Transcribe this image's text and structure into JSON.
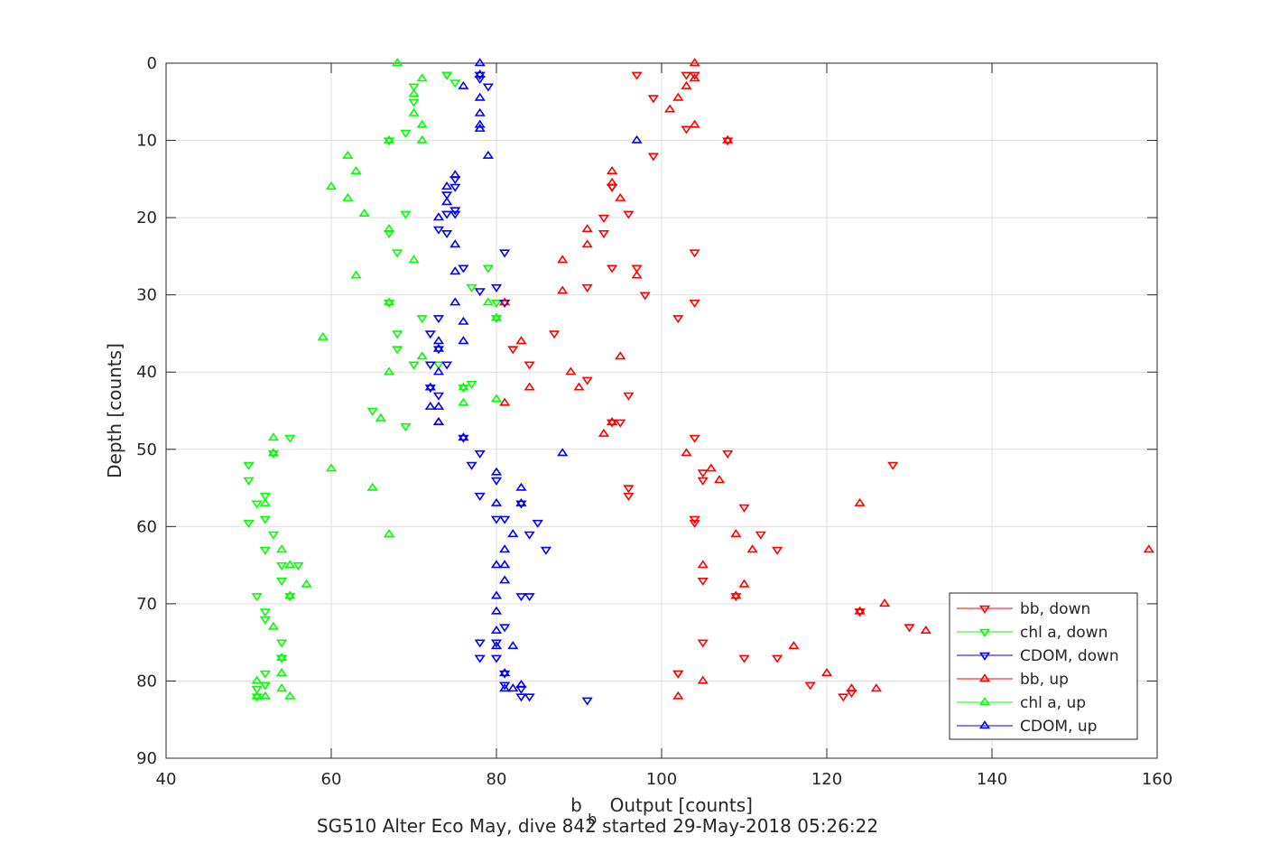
{
  "chart_data": {
    "type": "scatter",
    "title": "",
    "xlabel": "Output [counts]",
    "xlabel_prefix": "b",
    "xlabel_subscript": "b",
    "ylabel": "Depth [counts]",
    "caption": "SG510 Alter Eco May, dive 842 started 29-May-2018 05:26:22",
    "xlim": [
      40,
      160
    ],
    "ylim": [
      0,
      90
    ],
    "y_reversed": true,
    "grid": true,
    "legend_position": "bottom-right",
    "x_ticks": [
      "40",
      "60",
      "80",
      "100",
      "120",
      "140",
      "160"
    ],
    "y_ticks": [
      "0",
      "10",
      "20",
      "30",
      "40",
      "50",
      "60",
      "70",
      "80",
      "90"
    ],
    "series": [
      {
        "name": "bb, down",
        "color": "#ff0000",
        "marker": "triangle-down",
        "x": [
          97,
          103,
          104,
          99,
          103,
          108,
          99,
          94,
          94,
          94,
          96,
          93,
          93,
          104,
          97,
          94,
          91,
          104,
          102,
          87,
          82,
          84,
          91,
          96,
          94,
          95,
          104,
          108,
          128,
          105,
          105,
          96,
          96,
          104,
          110,
          112,
          114,
          109,
          104,
          105,
          124,
          130,
          124,
          105,
          110,
          114,
          102,
          118,
          123,
          122,
          102,
          98
        ],
        "y": [
          1.5,
          1.5,
          1.5,
          4.5,
          8.5,
          10,
          12,
          16,
          16,
          16,
          19.5,
          20,
          22,
          24.5,
          26.5,
          26.5,
          29,
          31,
          33,
          35,
          37,
          39,
          41,
          43,
          46.5,
          46.5,
          48.5,
          50.5,
          52,
          53,
          54,
          55,
          56,
          59,
          57.5,
          61,
          63,
          69,
          59.5,
          67,
          71,
          73,
          71,
          75,
          77,
          77,
          79,
          80.5,
          81.5,
          82,
          79,
          30
        ]
      },
      {
        "name": "chl a, down",
        "color": "#00ff00",
        "marker": "triangle-down",
        "x": [
          74,
          74,
          75,
          70,
          70,
          69,
          67,
          69,
          67,
          68,
          67,
          79,
          77,
          80,
          71,
          68,
          68,
          70,
          73,
          76,
          77,
          65,
          69,
          55,
          53,
          50,
          50,
          51,
          52,
          52,
          50,
          53,
          52,
          54,
          55,
          56,
          54,
          51,
          52,
          52,
          54,
          54,
          54,
          52,
          52,
          51,
          51,
          80
        ],
        "y": [
          1.5,
          1.5,
          2.5,
          3,
          5,
          9,
          10,
          19.5,
          22,
          24.5,
          31,
          26.5,
          29,
          33,
          33,
          35,
          37,
          39,
          39,
          42,
          41.5,
          45,
          47,
          48.5,
          50.5,
          52,
          54,
          57,
          56,
          59,
          59.5,
          61,
          63,
          65,
          69,
          65,
          67,
          69,
          71,
          72,
          75,
          77,
          77,
          79,
          80.5,
          81,
          82,
          31
        ]
      },
      {
        "name": "CDOM, down",
        "color": "#0000ff",
        "marker": "triangle-down",
        "x": [
          78,
          78,
          79,
          75,
          74,
          75,
          74,
          73,
          75,
          74,
          81,
          80,
          78,
          76,
          73,
          72,
          72,
          74,
          73,
          72,
          73,
          76,
          78,
          77,
          80,
          78,
          80,
          81,
          83,
          84,
          85,
          86,
          83,
          84,
          81,
          80,
          80,
          78,
          78,
          81,
          81,
          83,
          84,
          83,
          91,
          75,
          81
        ],
        "y": [
          1.5,
          2,
          3,
          15,
          17,
          19,
          19.5,
          21.5,
          19.5,
          22,
          24.5,
          29,
          29.5,
          26.5,
          33,
          35,
          39,
          39,
          37,
          42,
          43,
          48.5,
          50.5,
          52,
          54,
          56,
          59,
          59,
          57,
          61,
          59.5,
          63,
          69,
          69,
          73,
          75,
          77,
          77,
          75,
          79,
          80.5,
          81,
          82,
          82,
          82.5,
          16,
          31
        ]
      }
    ],
    "series_up": [
      {
        "name": "bb, up",
        "color": "#ff0000",
        "marker": "triangle-up",
        "x": [
          104,
          104,
          103,
          102,
          101,
          104,
          108,
          94,
          94,
          95,
          91,
          91,
          88,
          97,
          88,
          81,
          83,
          89,
          90,
          84,
          81,
          94,
          93,
          103,
          106,
          107,
          124,
          109,
          111,
          159,
          105,
          110,
          109,
          127,
          124,
          132,
          116,
          123,
          126,
          120,
          105,
          102,
          95
        ],
        "y": [
          0,
          2,
          3,
          4.5,
          6,
          8,
          10,
          14,
          15.5,
          17.5,
          21.5,
          23.5,
          25.5,
          27.5,
          29.5,
          31,
          36,
          40,
          42,
          42,
          44,
          46.5,
          48,
          50.5,
          52.5,
          54,
          57,
          61,
          63,
          63,
          65,
          67.5,
          69,
          70,
          71,
          73.5,
          75.5,
          81,
          81,
          79,
          80,
          82,
          38
        ]
      },
      {
        "name": "chl a, up",
        "color": "#00ff00",
        "marker": "triangle-up",
        "x": [
          68,
          71,
          70,
          70,
          71,
          71,
          67,
          62,
          63,
          60,
          62,
          64,
          67,
          63,
          70,
          80,
          79,
          67,
          59,
          71,
          67,
          76,
          76,
          80,
          66,
          53,
          53,
          60,
          65,
          52,
          67,
          54,
          55,
          57,
          55,
          53,
          54,
          51,
          54,
          55,
          51,
          52,
          54
        ],
        "y": [
          0,
          2,
          4,
          6.5,
          8,
          10,
          10,
          12,
          14,
          16,
          17.5,
          19.5,
          21.5,
          27.5,
          25.5,
          33,
          31,
          31,
          35.5,
          38,
          40,
          42,
          44,
          43.5,
          46,
          48.5,
          50.5,
          52.5,
          55,
          57,
          61,
          63,
          65,
          67.5,
          69,
          73,
          77,
          80,
          79,
          82,
          82,
          82,
          81
        ]
      },
      {
        "name": "CDOM, up",
        "color": "#0000ff",
        "marker": "triangle-up",
        "x": [
          78,
          78,
          76,
          78,
          78,
          78,
          78,
          97,
          79,
          75,
          74,
          74,
          73,
          75,
          75,
          75,
          76,
          76,
          73,
          73,
          73,
          72,
          72,
          73,
          73,
          73,
          76,
          88,
          80,
          83,
          80,
          83,
          82,
          81,
          80,
          81,
          81,
          80,
          80,
          80,
          82,
          80,
          81,
          81,
          83,
          82
        ],
        "y": [
          0,
          1.5,
          3,
          4.5,
          6.5,
          8,
          8.5,
          10,
          12,
          14.5,
          16,
          18,
          20,
          23.5,
          27,
          31,
          33.5,
          36,
          36,
          37,
          40,
          42,
          44.5,
          44.5,
          46.5,
          46.5,
          48.5,
          50.5,
          53,
          55,
          57,
          57,
          61,
          63,
          65,
          65,
          67,
          69,
          71,
          73.5,
          75.5,
          75.5,
          79,
          81,
          80.5,
          81
        ]
      }
    ]
  }
}
